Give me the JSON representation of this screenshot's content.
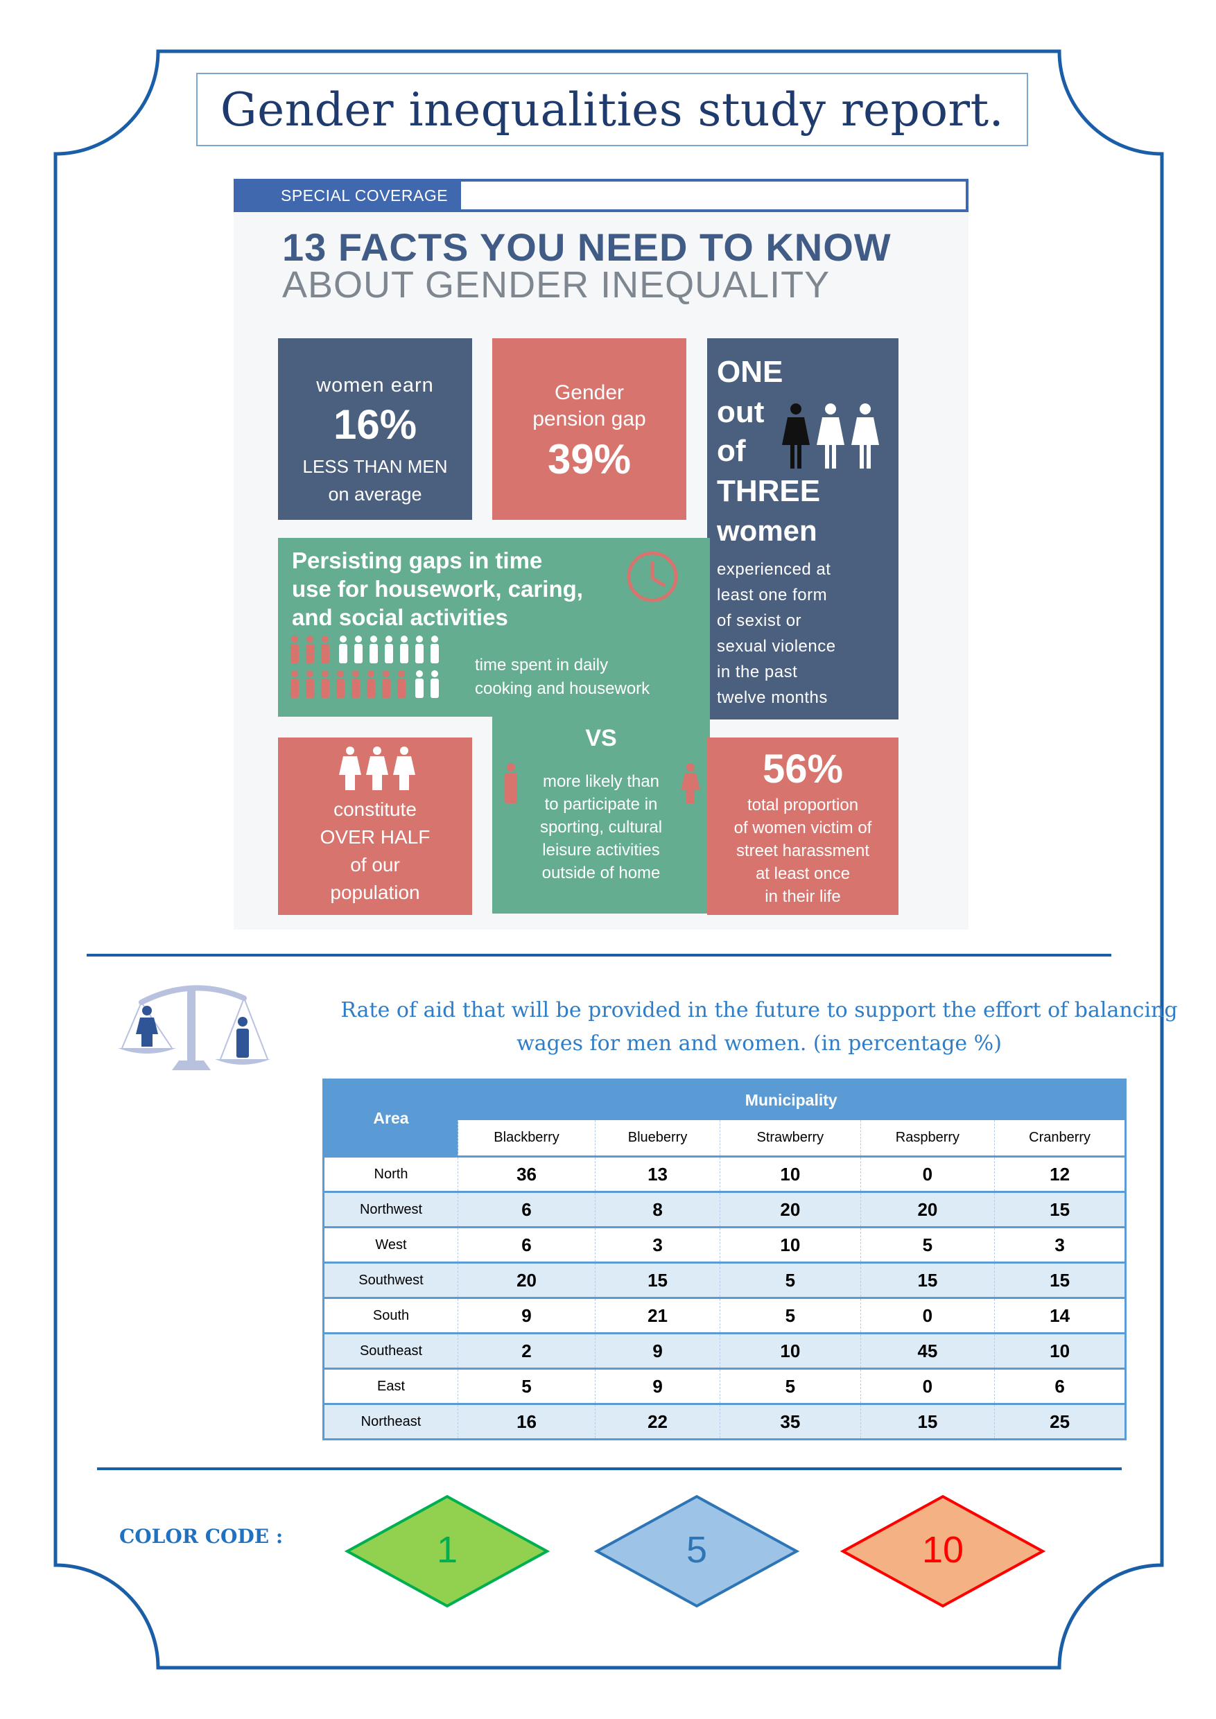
{
  "page_title": "Gender inequalities study report.",
  "infographic": {
    "banner_label": "SPECIAL COVERAGE",
    "headline": "13 FACTS YOU NEED TO KNOW",
    "subheadline": "ABOUT GENDER INEQUALITY",
    "earnings": {
      "line1": "women earn",
      "value": "16%",
      "line2": "LESS THAN MEN",
      "line3": "on average"
    },
    "pension": {
      "line1": "Gender",
      "line2": "pension gap",
      "value": "39%"
    },
    "violence": {
      "one": "ONE",
      "out": "out",
      "of": "of",
      "three": "THREE",
      "women": "women",
      "l1": "experienced at",
      "l2": "least one form",
      "l3": "of sexist or",
      "l4": "sexual violence",
      "l5": "in the past",
      "l6": "twelve months"
    },
    "time_use": {
      "t1": "Persisting gaps in time",
      "t2": "use for housework, caring,",
      "t3": "and social activities",
      "d1": "time spent in daily",
      "d2": "cooking and housework",
      "vs": "VS",
      "m1": "more likely than",
      "m2": "to participate in",
      "m3": "sporting, cultural",
      "m4": "leisure activities",
      "m5": "outside of home"
    },
    "population": {
      "l1": "constitute",
      "l2": "OVER HALF",
      "l3": "of our",
      "l4": "population"
    },
    "harassment": {
      "value": "56%",
      "l1": "total proportion",
      "l2": "of women victim of",
      "l3": "street harassment",
      "l4": "at least once",
      "l5": "in their life"
    }
  },
  "chart_title_line1": "Rate of aid that will be provided in the future to support the effort of balancing",
  "chart_title_line2": "wages for men and women. (in percentage %)",
  "chart_data": {
    "type": "table",
    "row_header": "Area",
    "group_header": "Municipality",
    "columns": [
      "Blackberry",
      "Blueberry",
      "Strawberry",
      "Raspberry",
      "Cranberry"
    ],
    "rows": [
      {
        "area": "North",
        "values": [
          36,
          13,
          10,
          0,
          12
        ]
      },
      {
        "area": "Northwest",
        "values": [
          6,
          8,
          20,
          20,
          15
        ]
      },
      {
        "area": "West",
        "values": [
          6,
          3,
          10,
          5,
          3
        ]
      },
      {
        "area": "Southwest",
        "values": [
          20,
          15,
          5,
          15,
          15
        ]
      },
      {
        "area": "South",
        "values": [
          9,
          21,
          5,
          0,
          14
        ]
      },
      {
        "area": "Southeast",
        "values": [
          2,
          9,
          10,
          45,
          10
        ]
      },
      {
        "area": "East",
        "values": [
          5,
          9,
          5,
          0,
          6
        ]
      },
      {
        "area": "Northeast",
        "values": [
          16,
          22,
          35,
          15,
          25
        ]
      }
    ]
  },
  "color_code": {
    "label": "COLOR CODE :",
    "items": [
      {
        "value": "1",
        "fill": "#92d050",
        "stroke": "#00b050",
        "text_color": "#00b050"
      },
      {
        "value": "5",
        "fill": "#9dc3e6",
        "stroke": "#2e75b6",
        "text_color": "#2e75b6"
      },
      {
        "value": "10",
        "fill": "#f4b183",
        "stroke": "#ff0000",
        "text_color": "#ff0000"
      }
    ]
  },
  "colors": {
    "frame": "#1a5ea7",
    "table_header": "#5b9bd5",
    "alt_row": "#ddebf7"
  }
}
